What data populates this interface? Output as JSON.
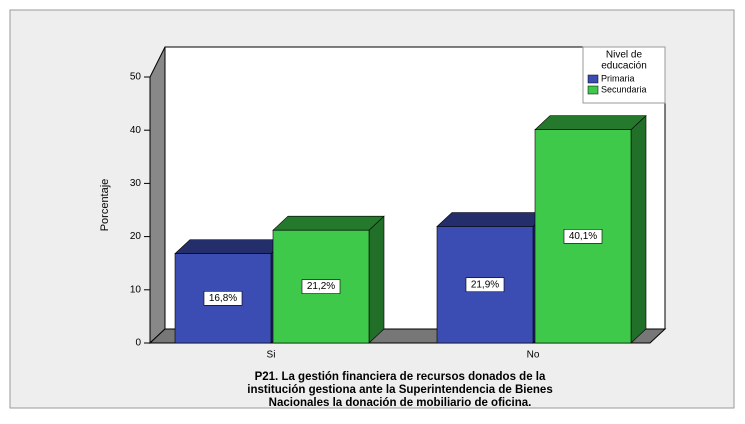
{
  "chart_data": {
    "type": "bar3d",
    "categories": [
      "Si",
      "No"
    ],
    "series": [
      {
        "name": "Primaria",
        "color": "#3b4db3",
        "values": [
          16.8,
          21.9
        ],
        "value_labels": [
          "16,8%",
          "21,9%"
        ]
      },
      {
        "name": "Secundaria",
        "color": "#3ec94a",
        "values": [
          21.2,
          40.1
        ],
        "value_labels": [
          "21,2%",
          "40,1%"
        ]
      }
    ],
    "ylabel": "Porcentaje",
    "xlabel": [
      "P21. La gestión financiera de recursos donados de la",
      "institución gestiona ante la Superintendencia de Bienes",
      "Nacionales la donación de mobiliario de oficina."
    ],
    "legend_title": [
      "Nivel de",
      "educación"
    ],
    "ylim": [
      0,
      50
    ],
    "yticks": [
      0,
      10,
      20,
      30,
      40,
      50
    ]
  }
}
